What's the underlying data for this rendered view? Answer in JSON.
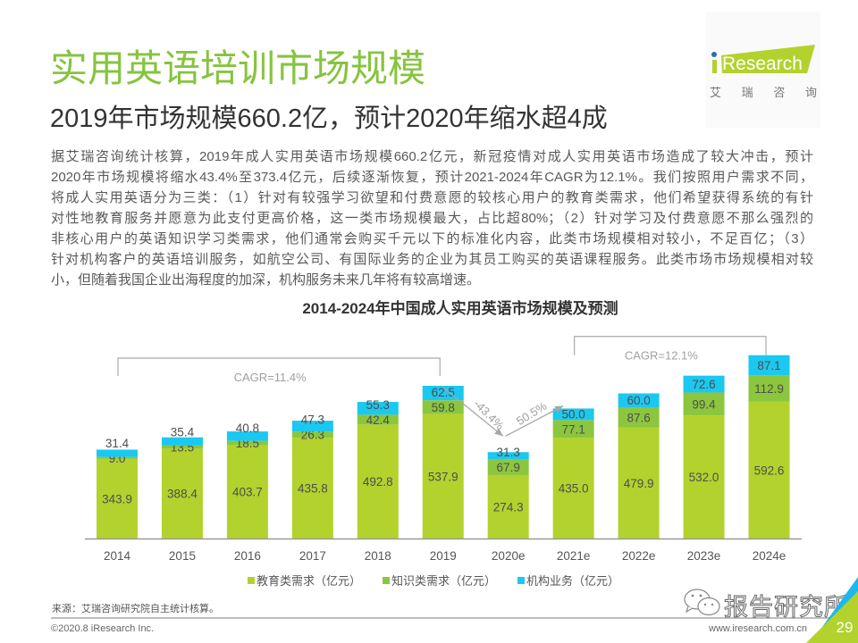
{
  "header": {
    "title": "实用英语培训市场规模",
    "subtitle": "2019年市场规模660.2亿，预计2020年缩水超4成"
  },
  "logo": {
    "brand": "Research",
    "cn_chars": [
      "艾",
      "瑞",
      "咨",
      "询"
    ],
    "colors": {
      "green": "#b3d22d",
      "blue_dot": "#2d6eb4"
    }
  },
  "body": {
    "lines": [
      "据艾瑞咨询统计核算，2019年成人实用英语市场规模660.2亿元，新冠疫情对成人实用英语市场造成了较大冲击，预计",
      "2020年市场规模将缩水43.4%至373.4亿元，后续逐渐恢复，预计2021-2024年CAGR为12.1%。我们按照用户需求不同，",
      "将成人实用英语分为三类：（1）针对有较强学习欲望和付费意愿的较核心用户的教育类需求，他们希望获得系统的有针",
      "对性地教育服务并愿意为此支付更高价格，这一类市场规模最大，占比超80%；（2）针对学习及付费意愿不那么强烈的",
      "非核心用户的英语知识学习类需求，他们通常会购买千元以下的标准化内容，此类市场规模相对较小，不足百亿；（3）",
      "针对机构客户的英语培训服务，如航空公司、有国际业务的企业为其员工购买的英语课程服务。此类市场市场规模相对较",
      "小，但随着我国企业出海程度的加深，机构服务未来几年将有较高增速。"
    ]
  },
  "chart_data": {
    "type": "bar",
    "stacked": true,
    "title": "2014-2024年中国成人实用英语市场规模及预测",
    "xlabel": "",
    "ylabel": "",
    "grid": false,
    "y_axis_visible": false,
    "categories": [
      "2014",
      "2015",
      "2016",
      "2017",
      "2018",
      "2019",
      "2020e",
      "2021e",
      "2022e",
      "2023e",
      "2024e"
    ],
    "series": [
      {
        "name": "教育类需求（亿元）",
        "color": "#b3d22d",
        "values": [
          343.9,
          388.4,
          403.7,
          435.8,
          492.8,
          537.9,
          274.3,
          435.0,
          479.9,
          532.0,
          592.6
        ],
        "labels": [
          "343.9",
          "388.4",
          "403.7",
          "435.8",
          "492.8",
          "537.9",
          "274.3",
          "435.0",
          "479.9",
          "532.0",
          "592.6"
        ]
      },
      {
        "name": "知识类需求（亿元）",
        "color": "#8cc63e",
        "values": [
          9.0,
          13.5,
          18.5,
          26.3,
          42.4,
          59.8,
          67.9,
          77.1,
          87.6,
          99.4,
          112.9
        ],
        "labels": [
          "9.0",
          "13.5",
          "18.5",
          "26.3",
          "42.4",
          "59.8",
          "67.9",
          "77.1",
          "87.6",
          "99.4",
          "112.9"
        ]
      },
      {
        "name": "机构业务（亿元）",
        "color": "#1bc8f0",
        "values": [
          31.4,
          35.4,
          40.8,
          47.3,
          55.3,
          62.5,
          31.3,
          50.0,
          60.0,
          72.6,
          87.1
        ],
        "labels": [
          "31.4",
          "35.4",
          "40.8",
          "47.3",
          "55.3",
          "62.5",
          "31.3",
          "50.0",
          "60.0",
          "72.6",
          "87.1"
        ]
      }
    ],
    "annotations": [
      {
        "type": "bracket",
        "from": "2014",
        "to": "2019",
        "text": "CAGR=11.4%"
      },
      {
        "type": "bracket",
        "from": "2021e",
        "to": "2024e",
        "text": "CAGR=12.1%"
      },
      {
        "type": "arrow",
        "from": "2019",
        "to": "2020e",
        "text": "-43.4%"
      },
      {
        "type": "arrow",
        "from": "2020e",
        "to": "2021e",
        "text": "50.5%"
      }
    ],
    "legend": {
      "position": "bottom"
    }
  },
  "footer": {
    "source": "来源：艾瑞咨询研究院自主统计核算。",
    "copyright": "©2020.8 iResearch Inc.",
    "website": "www.iresearch.com.cn",
    "page_number": "29",
    "watermark": "报告研究所",
    "corner_colors": {
      "blue": "#1bb8ee",
      "green": "#b3d22d"
    }
  }
}
